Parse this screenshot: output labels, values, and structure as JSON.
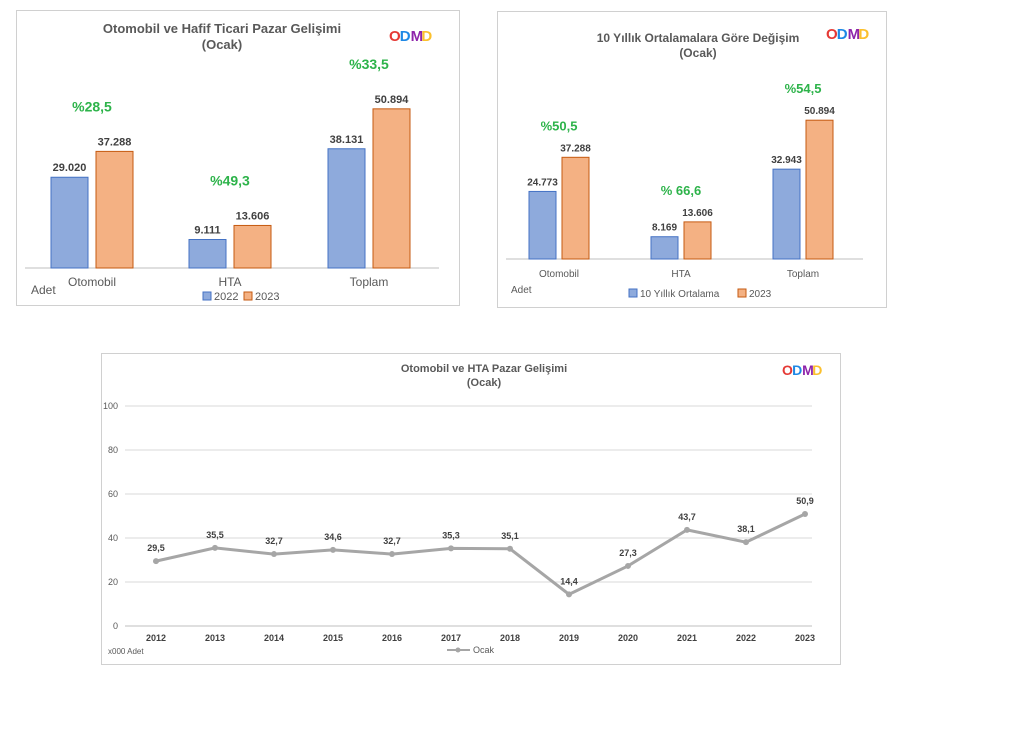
{
  "logo_text": "ODMD",
  "colors": {
    "series_a": "#8eaadc",
    "series_a_stroke": "#4472c4",
    "series_b": "#f4b183",
    "series_b_stroke": "#c55a11",
    "pct": "#2db34a",
    "line": "#a6a6a6",
    "grid": "#d9d9d9"
  },
  "chart_data": [
    {
      "type": "bar",
      "title": "Otomobil  ve  Hafif  Ticari  Pazar  Gelişimi",
      "subtitle": "(Ocak)",
      "unit_label": "Adet",
      "categories": [
        "Otomobil",
        "HTA",
        "Toplam"
      ],
      "series": [
        {
          "name": "2022",
          "values": [
            29020,
            9111,
            38131
          ],
          "labels": [
            "29.020",
            "9.111",
            "38.131"
          ]
        },
        {
          "name": "2023",
          "values": [
            37288,
            13606,
            50894
          ],
          "labels": [
            "37.288",
            "13.606",
            "50.894"
          ]
        }
      ],
      "change_labels": [
        "%28,5",
        "%49,3",
        "%33,5"
      ],
      "ylim": [
        0,
        55000
      ],
      "legend": "bottom",
      "grid": false
    },
    {
      "type": "bar",
      "title": "10 Yıllık  Ortalamalara  Göre Değişim",
      "subtitle": "(Ocak)",
      "unit_label": "Adet",
      "categories": [
        "Otomobil",
        "HTA",
        "Toplam"
      ],
      "series": [
        {
          "name": "10 Yıllık Ortalama",
          "values": [
            24773,
            8169,
            32943
          ],
          "labels": [
            "24.773",
            "8.169",
            "32.943"
          ]
        },
        {
          "name": "2023",
          "values": [
            37288,
            13606,
            50894
          ],
          "labels": [
            "37.288",
            "13.606",
            "50.894"
          ]
        }
      ],
      "change_labels": [
        "%50,5",
        "% 66,6",
        "%54,5"
      ],
      "ylim": [
        0,
        55000
      ],
      "legend": "bottom",
      "grid": false
    },
    {
      "type": "line",
      "title": "Otomobil ve HTA Pazar Gelişimi",
      "subtitle": "(Ocak)",
      "unit_label": "x000 Adet",
      "x": [
        "2012",
        "2013",
        "2014",
        "2015",
        "2016",
        "2017",
        "2018",
        "2019",
        "2020",
        "2021",
        "2022",
        "2023"
      ],
      "series": [
        {
          "name": "Ocak",
          "values": [
            29.5,
            35.5,
            32.7,
            34.6,
            32.7,
            35.3,
            35.1,
            14.4,
            27.3,
            43.7,
            38.1,
            50.9
          ],
          "labels": [
            "29,5",
            "35,5",
            "32,7",
            "34,6",
            "32,7",
            "35,3",
            "35,1",
            "14,4",
            "27,3",
            "43,7",
            "38,1",
            "50,9"
          ]
        }
      ],
      "yticks": [
        "0",
        "20",
        "40",
        "60",
        "80",
        "100"
      ],
      "ylim": [
        0,
        100
      ],
      "legend": "bottom",
      "grid": true
    }
  ]
}
